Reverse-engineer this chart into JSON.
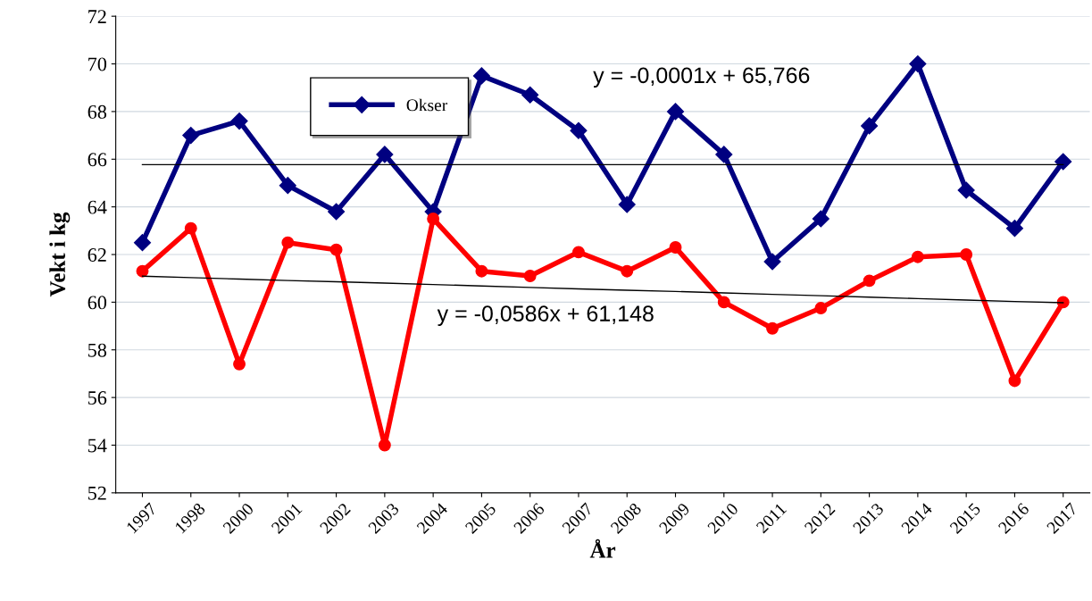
{
  "chart_data": {
    "type": "line",
    "xlabel": "År",
    "ylabel": "Vekt i kg",
    "categories": [
      "1997",
      "1998",
      "2000",
      "2001",
      "2002",
      "2003",
      "2004",
      "2005",
      "2006",
      "2007",
      "2008",
      "2009",
      "2010",
      "2011",
      "2012",
      "2013",
      "2014",
      "2015",
      "2016",
      "2017"
    ],
    "series": [
      {
        "name": "Okser",
        "color": "#000080",
        "marker": "diamond",
        "values": [
          62.5,
          67.0,
          67.6,
          64.9,
          63.8,
          66.2,
          63.8,
          69.5,
          68.7,
          67.2,
          64.1,
          68.0,
          66.2,
          61.7,
          63.5,
          67.4,
          70.0,
          64.7,
          63.1,
          65.9
        ]
      },
      {
        "color": "#ff0000",
        "marker": "circle",
        "values": [
          61.3,
          63.1,
          57.4,
          62.5,
          62.2,
          54.0,
          63.5,
          61.3,
          61.1,
          62.1,
          61.3,
          62.3,
          60.0,
          58.9,
          59.75,
          60.9,
          61.9,
          62.0,
          56.7,
          60.0
        ]
      },
      {
        "type": "line",
        "color": "#000000",
        "marker": "none",
        "values": [
          65.77,
          65.77,
          65.77,
          65.77,
          65.77,
          65.77,
          65.77,
          65.77,
          65.77,
          65.77,
          65.77,
          65.77,
          65.77,
          65.77,
          65.77,
          65.77,
          65.77,
          65.77,
          65.77,
          65.77
        ]
      },
      {
        "type": "line",
        "color": "#000000",
        "marker": "none",
        "values": [
          61.09,
          61.03,
          60.97,
          60.91,
          60.86,
          60.8,
          60.74,
          60.68,
          60.62,
          60.56,
          60.5,
          60.45,
          60.39,
          60.33,
          60.27,
          60.21,
          60.15,
          60.09,
          60.03,
          59.98
        ]
      }
    ],
    "annotations": [
      "y = -0,0001x + 65,766",
      "y = -0,0586x + 61,148"
    ],
    "ylim": [
      52,
      72
    ],
    "yticks": [
      52,
      54,
      56,
      58,
      60,
      62,
      64,
      66,
      68,
      70,
      72
    ],
    "grid": "y",
    "legend": "top left"
  }
}
